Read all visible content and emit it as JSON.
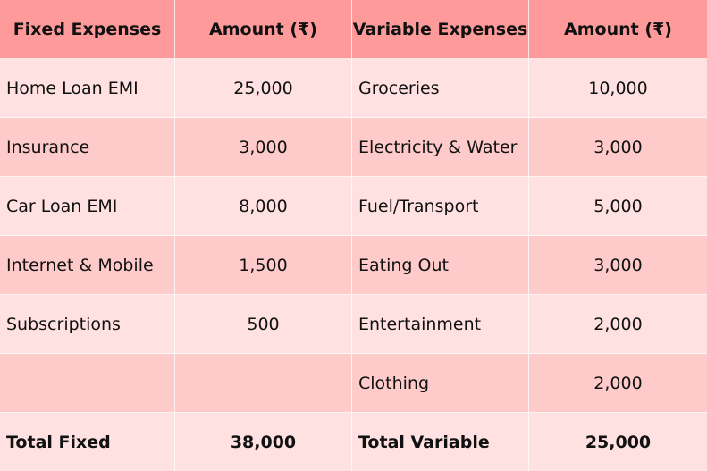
{
  "table": {
    "headers": [
      "Fixed Expenses",
      "Amount (₹)",
      "Variable Expenses",
      "Amount (₹)"
    ],
    "rows": [
      [
        "Home Loan EMI",
        "25,000",
        "Groceries",
        "10,000"
      ],
      [
        "Insurance",
        "3,000",
        "Electricity & Water",
        "3,000"
      ],
      [
        "Car Loan EMI",
        "8,000",
        "Fuel/Transport",
        "5,000"
      ],
      [
        "Internet & Mobile",
        "1,500",
        "Eating Out",
        "3,000"
      ],
      [
        "Subscriptions",
        "500",
        "Entertainment",
        "2,000"
      ],
      [
        "",
        "",
        "Clothing",
        "2,000"
      ]
    ],
    "totals": [
      "Total Fixed",
      "38,000",
      "Total Variable",
      "25,000"
    ]
  },
  "colors": {
    "header_bg": "#ff9a9a",
    "row_light": "#ffe1e1",
    "row_dark": "#ffcaca"
  }
}
